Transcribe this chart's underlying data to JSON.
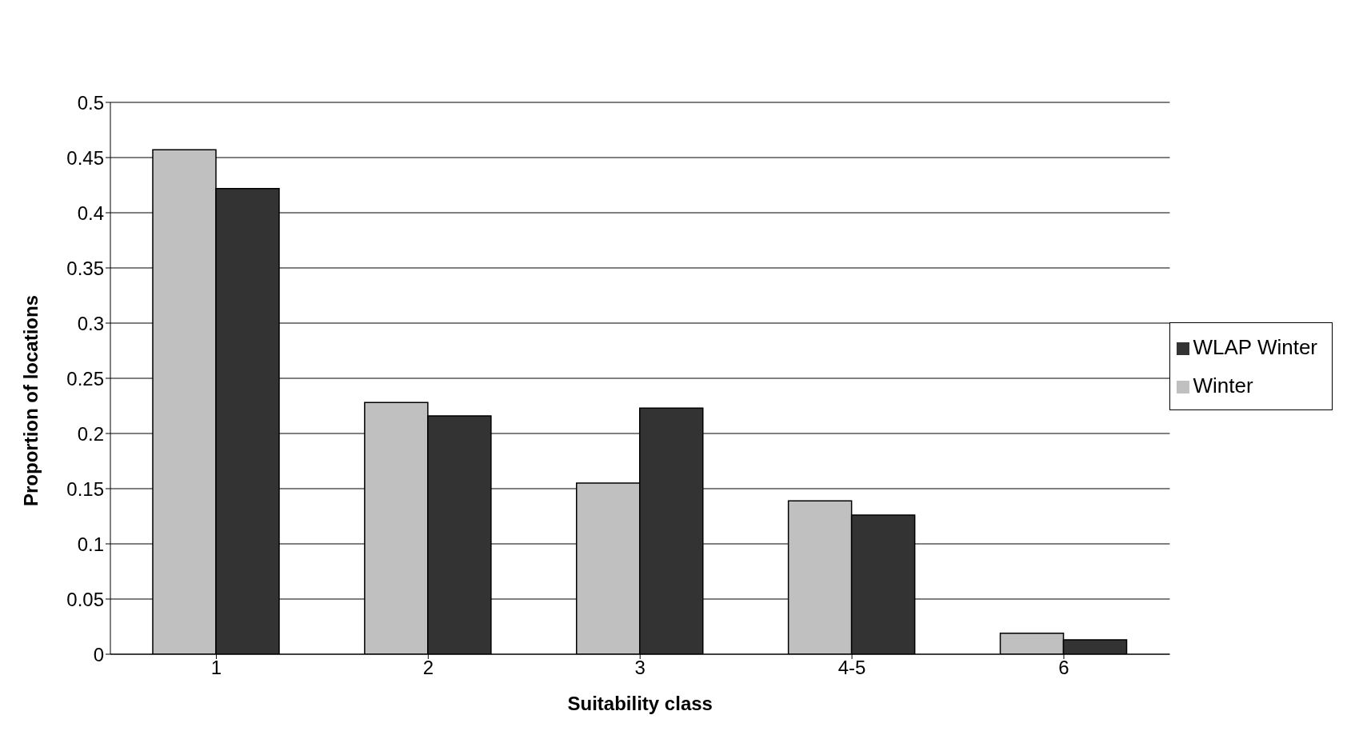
{
  "chart_data": {
    "type": "bar",
    "xlabel": "Suitability class",
    "ylabel": "Proportion of locations",
    "categories": [
      "1",
      "2",
      "3",
      "4-5",
      "6"
    ],
    "series": [
      {
        "name": "Winter",
        "color": "#c0c0c0",
        "values": [
          0.457,
          0.228,
          0.155,
          0.139,
          0.019
        ]
      },
      {
        "name": "WLAP Winter",
        "color": "#333333",
        "values": [
          0.422,
          0.216,
          0.223,
          0.126,
          0.013
        ]
      }
    ],
    "ylim": [
      0,
      0.5
    ],
    "yticks": [
      0,
      0.05,
      0.1,
      0.15,
      0.2,
      0.25,
      0.3,
      0.35,
      0.4,
      0.45,
      0.5
    ],
    "grid": "y",
    "legend": "right"
  }
}
